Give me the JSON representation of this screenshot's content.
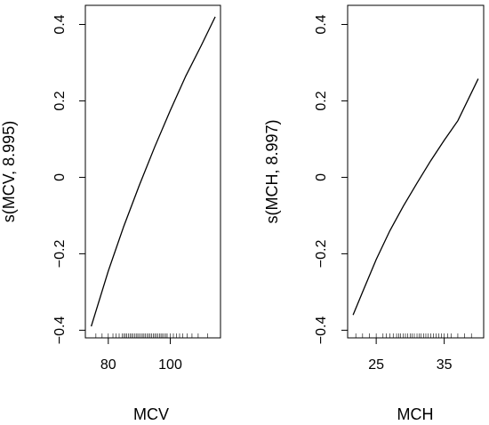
{
  "chart_data": [
    {
      "type": "line",
      "xlabel": "MCV",
      "ylabel": "s(MCV, 8.995)",
      "xlim": [
        72.6,
        116.2
      ],
      "ylim": [
        -0.42,
        0.45
      ],
      "xticks": [
        80,
        100
      ],
      "yticks": [
        -0.4,
        -0.2,
        0,
        0.2,
        0.4
      ],
      "ytick_labels": [
        "−0.4",
        "−0.2",
        "0",
        "0.2",
        "0.4"
      ],
      "series": [
        {
          "x": [
            74.5,
            80,
            85,
            90,
            95,
            100,
            105,
            110,
            114.5
          ],
          "y": [
            -0.39,
            -0.245,
            -0.128,
            -0.021,
            0.08,
            0.175,
            0.265,
            0.345,
            0.42
          ]
        }
      ],
      "rug": [
        76,
        78,
        80,
        81.5,
        82.5,
        83.5,
        84.5,
        85,
        85.5,
        86,
        86.5,
        87,
        87.5,
        88,
        88.5,
        89,
        89.5,
        90,
        90.5,
        91,
        91.5,
        92,
        92.5,
        93,
        93.5,
        94,
        94.5,
        95,
        95.5,
        96,
        96.5,
        97,
        97.5,
        98,
        98.5,
        99,
        100,
        101,
        102,
        103,
        104,
        105.5,
        107,
        109,
        112
      ]
    },
    {
      "type": "line",
      "xlabel": "MCH",
      "ylabel": "s(MCH, 8.997)",
      "xlim": [
        20.8,
        40.8
      ],
      "ylim": [
        -0.42,
        0.45
      ],
      "xticks": [
        25,
        35
      ],
      "yticks": [
        -0.4,
        -0.2,
        0,
        0.2,
        0.4
      ],
      "ytick_labels": [
        "−0.4",
        "−0.2",
        "0",
        "0.2",
        "0.4"
      ],
      "series": [
        {
          "x": [
            21.6,
            23,
            25,
            27,
            29,
            31,
            33,
            35,
            37,
            40
          ],
          "y": [
            -0.36,
            -0.3,
            -0.215,
            -0.14,
            -0.075,
            -0.015,
            0.043,
            0.097,
            0.148,
            0.258
          ]
        }
      ],
      "rug": [
        22,
        23,
        24,
        25,
        26,
        26.5,
        27,
        27.5,
        28,
        28.3,
        28.6,
        29,
        29.3,
        29.6,
        30,
        30.3,
        30.6,
        31,
        31.3,
        31.6,
        32,
        32.3,
        32.6,
        33,
        33.4,
        33.8,
        34.2,
        34.6,
        35,
        35.5,
        36,
        37,
        38,
        39
      ]
    }
  ]
}
